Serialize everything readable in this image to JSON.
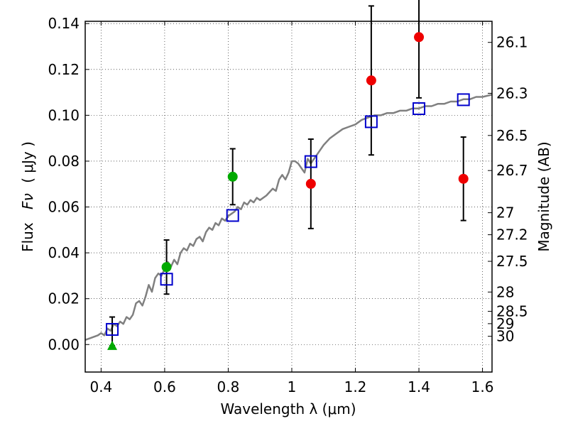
{
  "chart_data": {
    "type": "scatter",
    "xlabel": "Wavelength  λ (μm)",
    "ylabel_prefix": "Flux",
    "ylabel_symbol": "Fν",
    "ylabel_unit": "( μJy )",
    "y2label": "Magnitude (AB)",
    "xlim": [
      0.35,
      1.63
    ],
    "ylim": [
      -0.012,
      0.141
    ],
    "grid": true,
    "x_ticks": [
      {
        "value": 0.4,
        "label": "0.4"
      },
      {
        "value": 0.6,
        "label": "0.6"
      },
      {
        "value": 0.8,
        "label": "0.8"
      },
      {
        "value": 1.0,
        "label": "1"
      },
      {
        "value": 1.2,
        "label": "1.2"
      },
      {
        "value": 1.4,
        "label": "1.4"
      },
      {
        "value": 1.6,
        "label": "1.6"
      }
    ],
    "y_ticks": [
      {
        "value": 0.0,
        "label": "0.00"
      },
      {
        "value": 0.02,
        "label": "0.02"
      },
      {
        "value": 0.04,
        "label": "0.04"
      },
      {
        "value": 0.06,
        "label": "0.06"
      },
      {
        "value": 0.08,
        "label": "0.08"
      },
      {
        "value": 0.1,
        "label": "0.10"
      },
      {
        "value": 0.12,
        "label": "0.12"
      },
      {
        "value": 0.14,
        "label": "0.14"
      }
    ],
    "mag_ticks": [
      {
        "label": "26.1",
        "flux": 0.1318
      },
      {
        "label": "26.3",
        "flux": 0.1096
      },
      {
        "label": "26.5",
        "flux": 0.0912
      },
      {
        "label": "26.7",
        "flux": 0.0759
      },
      {
        "label": "27",
        "flux": 0.0575
      },
      {
        "label": "27.2",
        "flux": 0.0479
      },
      {
        "label": "27.5",
        "flux": 0.0363
      },
      {
        "label": "28",
        "flux": 0.0229
      },
      {
        "label": "28.5",
        "flux": 0.0145
      },
      {
        "label": "29",
        "flux": 0.0091
      },
      {
        "label": "30",
        "flux": 0.0036
      }
    ],
    "series": [
      {
        "name": "model-spectrum",
        "kind": "line",
        "color": "#808080",
        "x": [
          0.35,
          0.37,
          0.39,
          0.4,
          0.41,
          0.42,
          0.43,
          0.44,
          0.45,
          0.46,
          0.47,
          0.48,
          0.49,
          0.5,
          0.51,
          0.52,
          0.53,
          0.54,
          0.55,
          0.56,
          0.57,
          0.58,
          0.59,
          0.6,
          0.61,
          0.62,
          0.63,
          0.64,
          0.65,
          0.66,
          0.67,
          0.68,
          0.69,
          0.7,
          0.71,
          0.72,
          0.73,
          0.74,
          0.75,
          0.76,
          0.77,
          0.78,
          0.79,
          0.8,
          0.81,
          0.82,
          0.83,
          0.84,
          0.85,
          0.86,
          0.87,
          0.88,
          0.89,
          0.9,
          0.92,
          0.94,
          0.95,
          0.96,
          0.97,
          0.98,
          0.99,
          1.0,
          1.01,
          1.02,
          1.03,
          1.04,
          1.05,
          1.06,
          1.08,
          1.1,
          1.12,
          1.14,
          1.16,
          1.18,
          1.2,
          1.22,
          1.24,
          1.26,
          1.28,
          1.3,
          1.32,
          1.34,
          1.36,
          1.38,
          1.4,
          1.42,
          1.44,
          1.46,
          1.48,
          1.5,
          1.52,
          1.54,
          1.56,
          1.58,
          1.6,
          1.63
        ],
        "y": [
          0.002,
          0.003,
          0.004,
          0.005,
          0.004,
          0.007,
          0.006,
          0.009,
          0.008,
          0.01,
          0.009,
          0.012,
          0.011,
          0.013,
          0.018,
          0.019,
          0.017,
          0.021,
          0.026,
          0.023,
          0.029,
          0.031,
          0.03,
          0.033,
          0.036,
          0.034,
          0.037,
          0.035,
          0.04,
          0.042,
          0.041,
          0.044,
          0.043,
          0.046,
          0.047,
          0.045,
          0.049,
          0.051,
          0.05,
          0.053,
          0.052,
          0.055,
          0.054,
          0.056,
          0.057,
          0.058,
          0.06,
          0.059,
          0.062,
          0.061,
          0.063,
          0.062,
          0.064,
          0.063,
          0.065,
          0.068,
          0.067,
          0.072,
          0.074,
          0.072,
          0.075,
          0.08,
          0.08,
          0.079,
          0.077,
          0.075,
          0.081,
          0.079,
          0.083,
          0.087,
          0.09,
          0.092,
          0.094,
          0.095,
          0.096,
          0.098,
          0.099,
          0.1,
          0.1,
          0.101,
          0.101,
          0.102,
          0.102,
          0.103,
          0.103,
          0.104,
          0.104,
          0.105,
          0.105,
          0.106,
          0.106,
          0.107,
          0.107,
          0.108,
          0.108,
          0.109
        ]
      },
      {
        "name": "model-photometry",
        "kind": "open-square",
        "color": "#0000cc",
        "x": [
          0.435,
          0.606,
          0.814,
          1.06,
          1.25,
          1.4,
          1.54
        ],
        "y": [
          0.0066,
          0.0285,
          0.0563,
          0.0798,
          0.0972,
          0.1029,
          0.1068
        ]
      },
      {
        "name": "observed-optical",
        "kind": "filled-circle",
        "color": "#00aa00",
        "x": [
          0.606,
          0.814
        ],
        "y": [
          0.0338,
          0.0732
        ],
        "yerr": [
          0.0118,
          0.0122
        ]
      },
      {
        "name": "observed-upper-limit",
        "kind": "filled-triangle",
        "color": "#00aa00",
        "x": [
          0.435
        ],
        "y": [
          -0.0005
        ],
        "yerr_upper": [
          0.0125
        ]
      },
      {
        "name": "observed-nir",
        "kind": "filled-circle",
        "color": "#ee0000",
        "x": [
          1.06,
          1.25,
          1.4,
          1.54
        ],
        "y": [
          0.0701,
          0.1152,
          0.1341,
          0.0723
        ],
        "yerr": [
          0.0195,
          0.0325,
          0.0265,
          0.0182
        ]
      }
    ]
  }
}
